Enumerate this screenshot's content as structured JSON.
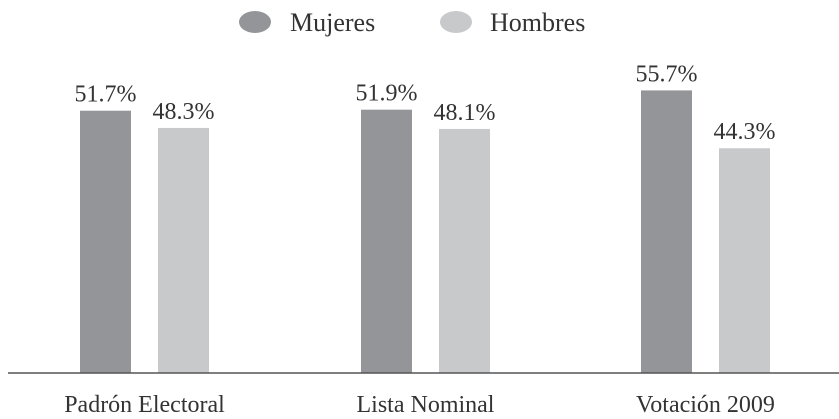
{
  "chart_data": {
    "type": "bar",
    "categories": [
      "Padrón Electoral",
      "Lista Nominal",
      "Votación 2009"
    ],
    "series": [
      {
        "name": "Mujeres",
        "values": [
          51.7,
          51.9,
          55.7
        ],
        "labels": [
          "51.7%",
          "51.9%",
          "55.7%"
        ],
        "color": "#939598"
      },
      {
        "name": "Hombres",
        "values": [
          48.3,
          48.1,
          44.3
        ],
        "labels": [
          "48.3%",
          "48.1%",
          "44.3%"
        ],
        "color": "#c8c9cb"
      }
    ],
    "title": "",
    "xlabel": "",
    "ylabel": "",
    "ylim": [
      0,
      68
    ],
    "grid": false,
    "legend_position": "top-center"
  },
  "colors": {
    "axis": "#555555",
    "text": "#333333"
  }
}
